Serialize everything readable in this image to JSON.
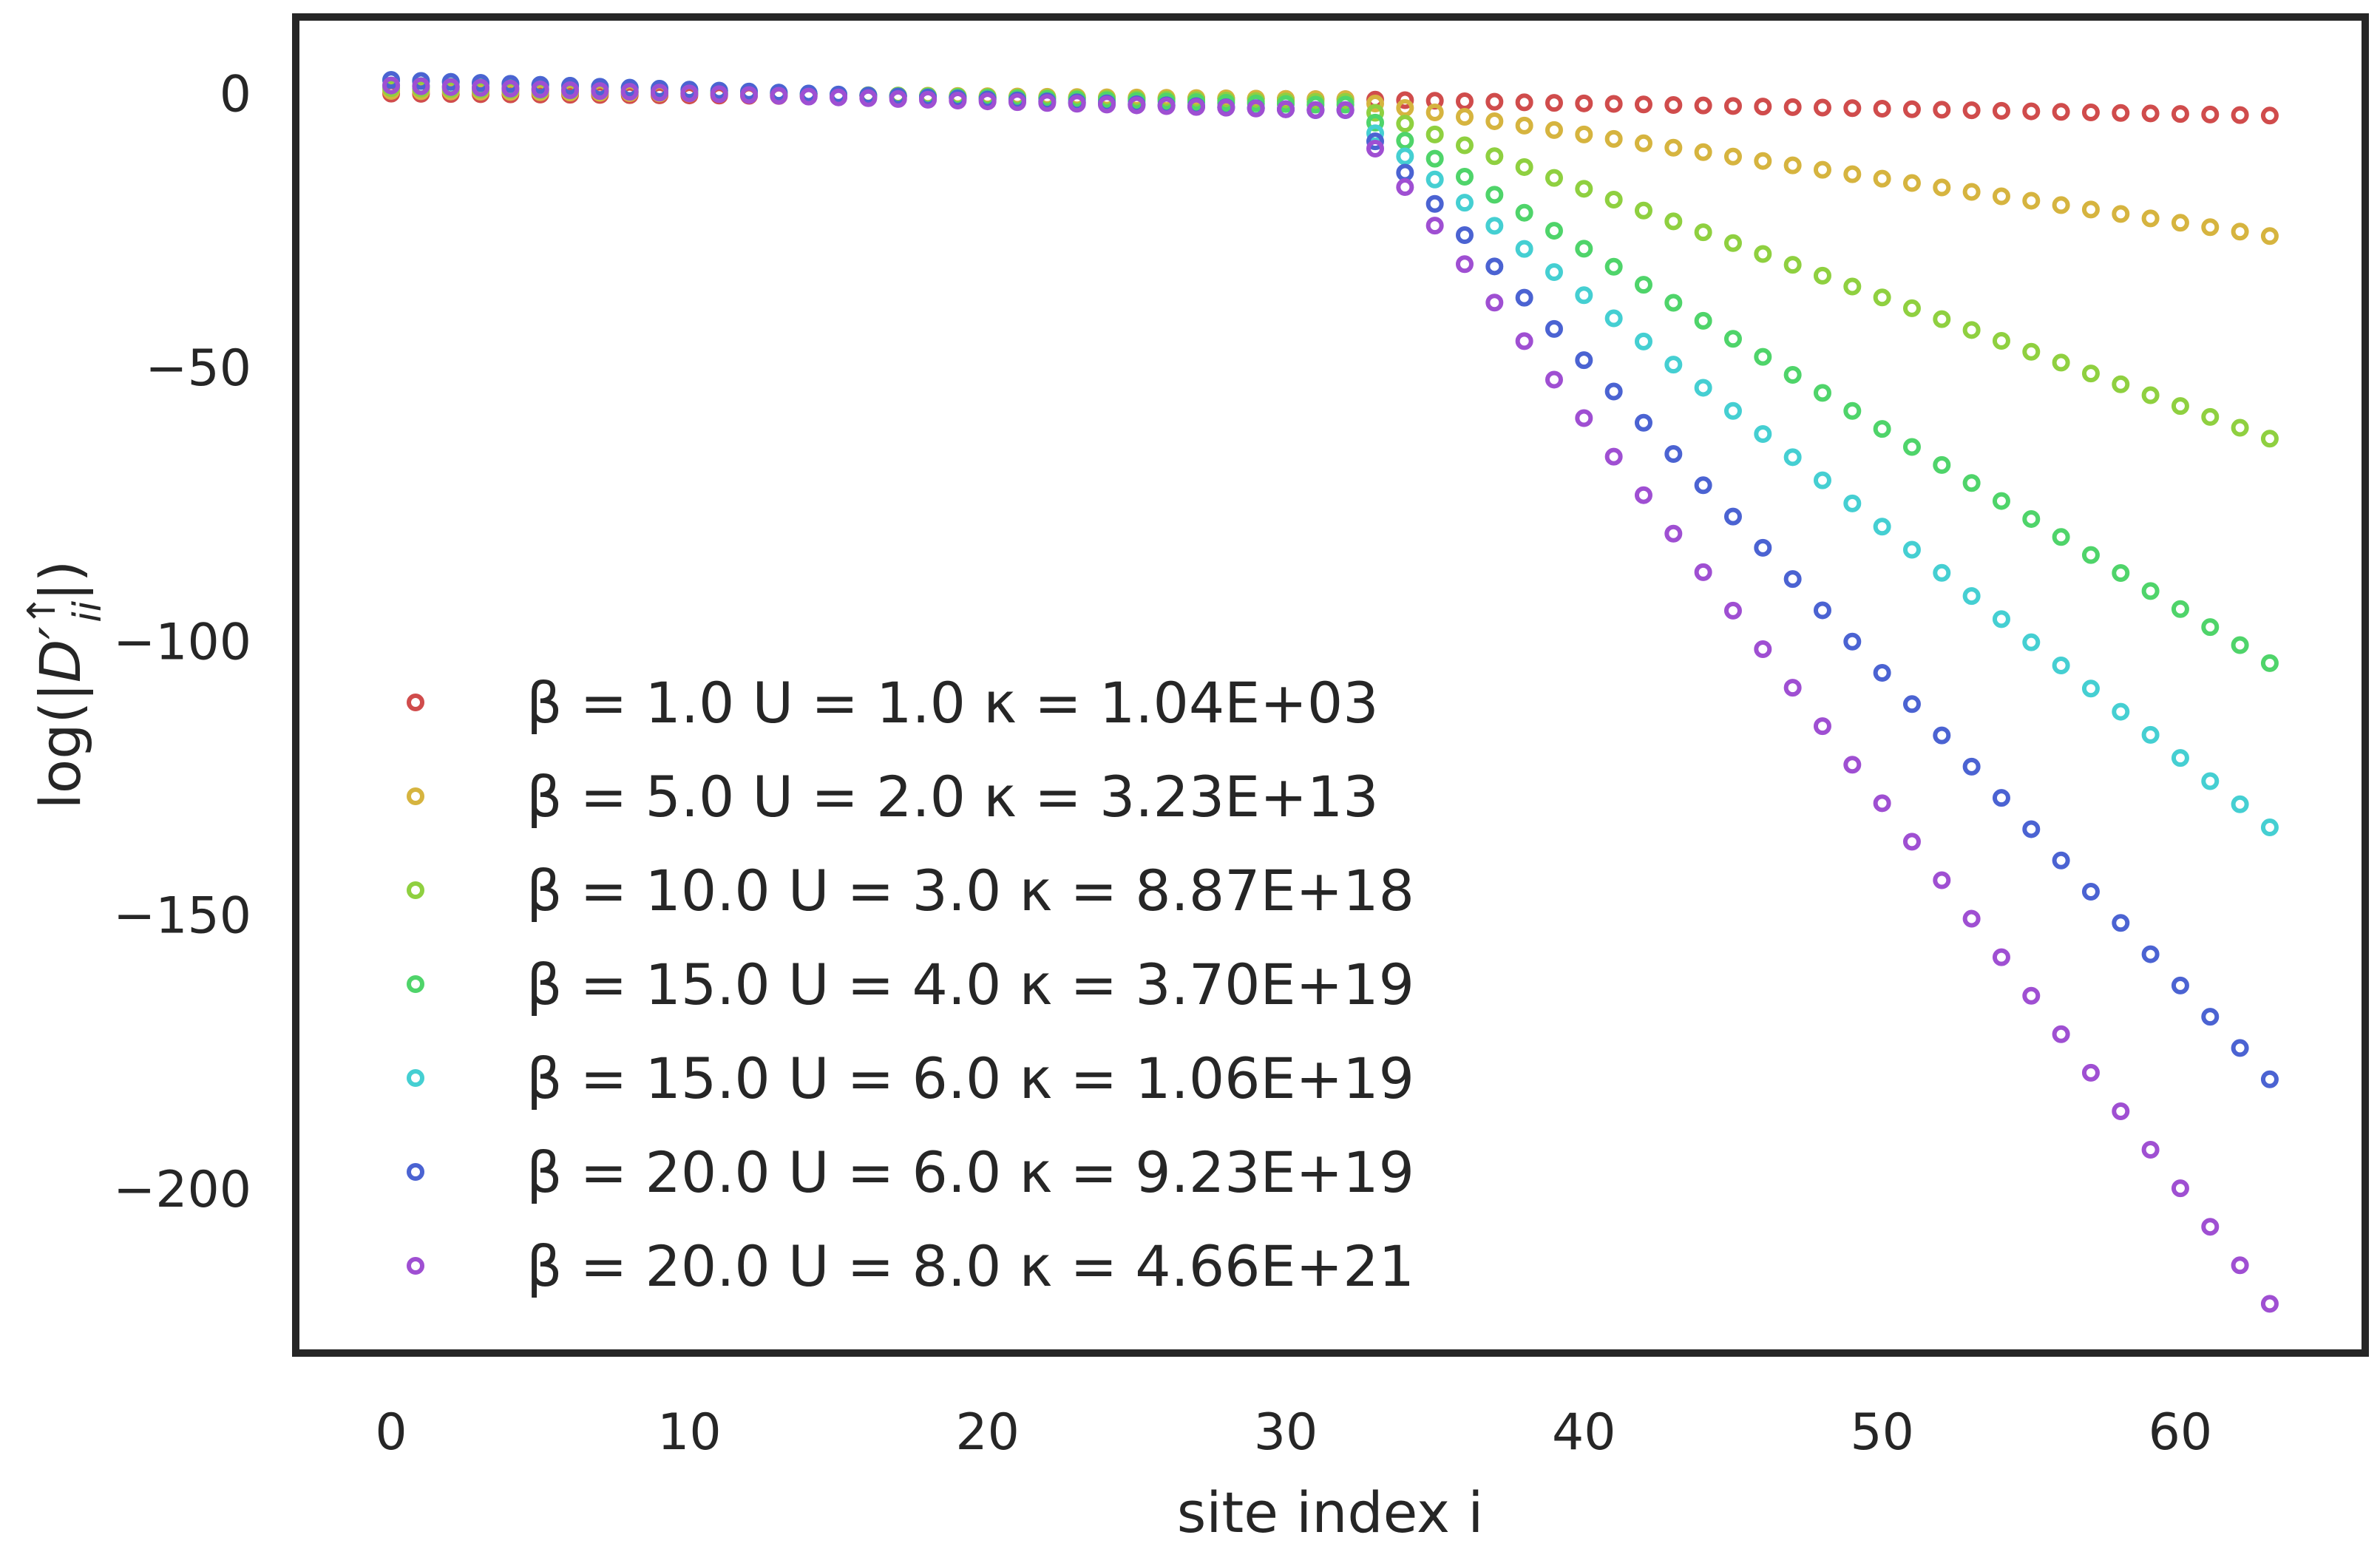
{
  "chart_data": {
    "type": "scatter",
    "title": "",
    "xlabel": "site index i",
    "ylabel": "log(|D′↑ii|)",
    "ylabel_parts": {
      "prefix": "log(|",
      "symbol": "D′",
      "sup": "↑",
      "sub": "ii",
      "suffix": "|)"
    },
    "xlim": [
      -3.2,
      66.2
    ],
    "ylim": [
      -230,
      14
    ],
    "xticks": [
      0,
      10,
      20,
      30,
      40,
      50,
      60
    ],
    "yticks": [
      0,
      -50,
      -100,
      -150,
      -200
    ],
    "ytick_labels": [
      "0",
      "−50",
      "−100",
      "−150",
      "−200"
    ],
    "grid": false,
    "legend_position": "lower-left",
    "marker": "hollow-circle",
    "series": [
      {
        "name": "β = 1.0    U = 1.0    κ = 1.04E+03",
        "color": "#d04c4c",
        "decay_start": 31,
        "y_start": -1.0,
        "y_end": -4.0,
        "flat_start": 0.0,
        "flat_end": -1.0
      },
      {
        "name": "β = 5.0    U = 2.0    κ = 3.23E+13",
        "color": "#d6b43f",
        "decay_start": 31,
        "y_start": -1.0,
        "y_end": -26.0,
        "flat_start": 0.5,
        "flat_end": -1.0
      },
      {
        "name": "β = 10.0    U = 3.0    κ = 8.87E+18",
        "color": "#8fd040",
        "decay_start": 31,
        "y_start": -1.5,
        "y_end": -63.0,
        "flat_start": 1.0,
        "flat_end": -1.5
      },
      {
        "name": "β = 15.0    U = 4.0    κ = 3.70E+19",
        "color": "#4fd46a",
        "decay_start": 31,
        "y_start": -2.0,
        "y_end": -104.0,
        "flat_start": 1.5,
        "flat_end": -2.0
      },
      {
        "name": "β = 15.0    U = 6.0    κ = 1.06E+19",
        "color": "#45cfd2",
        "decay_start": 31,
        "y_start": -3.0,
        "y_end": -134.0,
        "flat_start": 2.5,
        "flat_end": -3.0
      },
      {
        "name": "β = 20.0    U = 6.0    κ = 9.23E+19",
        "color": "#4b63d2",
        "decay_start": 31,
        "y_start": -3.0,
        "y_end": -180.0,
        "flat_start": 2.5,
        "flat_end": -3.0
      },
      {
        "name": "β = 20.0    U = 8.0    κ = 4.66E+21",
        "color": "#9f4fd2",
        "decay_start": 31,
        "y_start": -3.0,
        "y_end": -221.0,
        "flat_start": 1.5,
        "flat_end": -3.0
      }
    ]
  }
}
